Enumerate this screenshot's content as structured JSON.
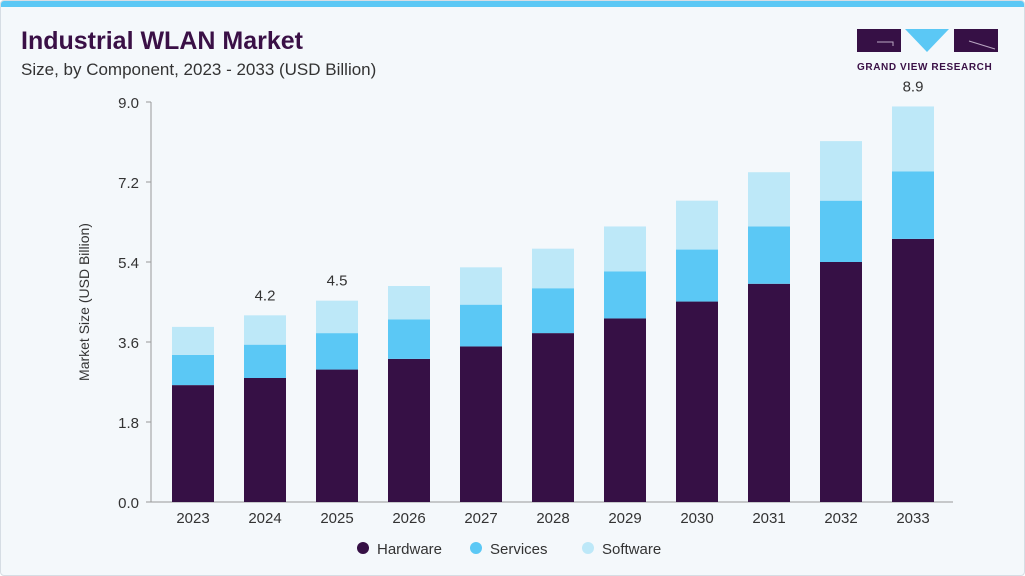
{
  "header": {
    "title": "Industrial WLAN Market",
    "subtitle": "Size, by Component, 2023 - 2033 (USD Billion)"
  },
  "logo": {
    "text": "GRAND VIEW RESEARCH"
  },
  "chart_data": {
    "type": "bar",
    "stacked": true,
    "title": "Industrial WLAN Market",
    "subtitle": "Size, by Component, 2023 - 2033 (USD Billion)",
    "xlabel": "",
    "ylabel": "Market Size (USD Billion)",
    "ylim": [
      0,
      9.0
    ],
    "yticks": [
      "0.0",
      "1.8",
      "3.6",
      "5.4",
      "7.2",
      "9.0"
    ],
    "grid": false,
    "legend_position": "bottom",
    "categories": [
      "2023",
      "2024",
      "2025",
      "2026",
      "2027",
      "2028",
      "2029",
      "2030",
      "2031",
      "2032",
      "2033"
    ],
    "series": [
      {
        "name": "Hardware",
        "color": "#361045",
        "values": [
          2.63,
          2.79,
          2.98,
          3.22,
          3.5,
          3.8,
          4.13,
          4.51,
          4.91,
          5.4,
          5.92
        ]
      },
      {
        "name": "Services",
        "color": "#5bc8f5",
        "values": [
          0.68,
          0.75,
          0.82,
          0.89,
          0.94,
          1.01,
          1.06,
          1.17,
          1.29,
          1.38,
          1.52
        ]
      },
      {
        "name": "Software",
        "color": "#bde8f8",
        "values": [
          0.63,
          0.66,
          0.73,
          0.75,
          0.84,
          0.89,
          1.01,
          1.1,
          1.22,
          1.34,
          1.46
        ]
      }
    ],
    "data_labels": [
      {
        "category": "2024",
        "text": "4.2"
      },
      {
        "category": "2025",
        "text": "4.5"
      },
      {
        "category": "2033",
        "text": "8.9"
      }
    ]
  }
}
